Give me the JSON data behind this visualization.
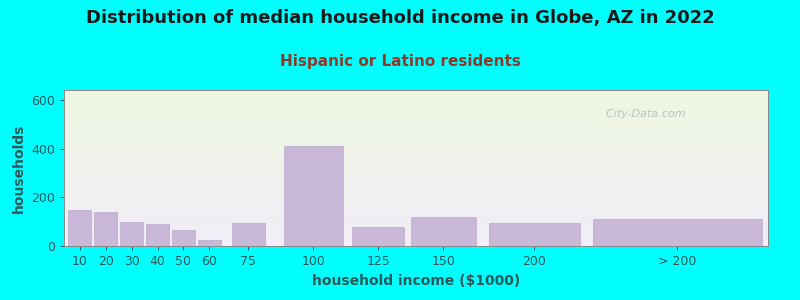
{
  "title": "Distribution of median household income in Globe, AZ in 2022",
  "subtitle": "Hispanic or Latino residents",
  "xlabel": "household income ($1000)",
  "ylabel": "households",
  "title_fontsize": 13,
  "subtitle_fontsize": 11,
  "label_fontsize": 10,
  "tick_fontsize": 9,
  "background_outer": "#00FFFF",
  "bar_color": "#c9b8d8",
  "bar_edgecolor": "#b8a8cc",
  "title_color": "#1a1a1a",
  "subtitle_color": "#8b3a2a",
  "axis_label_color": "#2a5a5a",
  "tick_color": "#2a5a5a",
  "watermark": "  City-Data.com",
  "categories": [
    "10",
    "20",
    "30",
    "40",
    "50",
    "60",
    "75",
    "100",
    "125",
    "150",
    "200",
    "> 200"
  ],
  "values": [
    148,
    138,
    100,
    90,
    65,
    25,
    95,
    410,
    80,
    120,
    95,
    110
  ],
  "x_positions": [
    0.5,
    1.5,
    2.5,
    3.5,
    4.5,
    5.5,
    7.0,
    9.5,
    12.0,
    14.5,
    18.0,
    23.5
  ],
  "bar_widths": [
    0.9,
    0.9,
    0.9,
    0.9,
    0.9,
    0.9,
    1.3,
    2.3,
    2.0,
    2.5,
    3.5,
    6.5
  ],
  "xlim": [
    -0.1,
    27.0
  ],
  "ylim": [
    0,
    640
  ],
  "yticks": [
    0,
    200,
    400,
    600
  ]
}
